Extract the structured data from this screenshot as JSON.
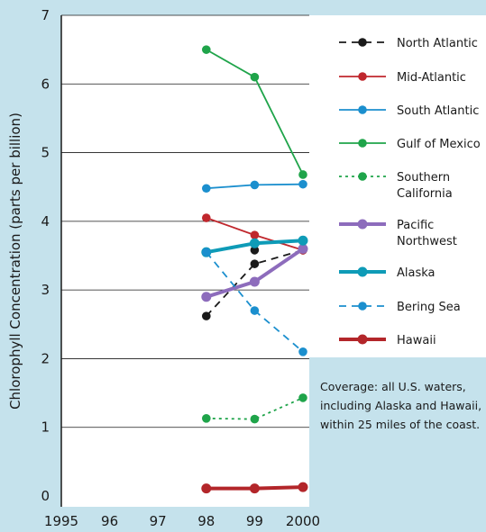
{
  "chart_data": {
    "type": "line",
    "title": "",
    "xlabel": "",
    "ylabel": "Chlorophyll Concentration (parts per billion)",
    "x_ticks": [
      "1995",
      "96",
      "97",
      "98",
      "99",
      "2000"
    ],
    "x_tick_values": [
      1995,
      1996,
      1997,
      1998,
      1999,
      2000
    ],
    "y_ticks": [
      "0",
      "1",
      "2",
      "3",
      "4",
      "5",
      "6",
      "7"
    ],
    "y_tick_values": [
      0,
      1,
      2,
      3,
      4,
      5,
      6,
      7
    ],
    "xlim": [
      1995,
      2000
    ],
    "ylim": [
      0,
      7
    ],
    "grid": "horizontal",
    "legend_position": "right",
    "series": [
      {
        "name": "North Atlantic",
        "color": "#1a1a1a",
        "style": "dashed",
        "weight": "thin",
        "x": [
          1998,
          1999,
          2000
        ],
        "values": [
          2.62,
          3.38,
          3.58
        ]
      },
      {
        "name": "",
        "color": "#1a1a1a",
        "style": "none",
        "weight": "thin",
        "x": [
          1999
        ],
        "values": [
          3.58
        ]
      },
      {
        "name": "Mid-Atlantic",
        "color": "#c0272d",
        "style": "solid",
        "weight": "thin",
        "x": [
          1998,
          1999,
          2000
        ],
        "values": [
          4.05,
          3.8,
          3.58
        ]
      },
      {
        "name": "South Atlantic",
        "color": "#1b8fce",
        "style": "solid",
        "weight": "thin",
        "x": [
          1998,
          1999,
          2000
        ],
        "values": [
          4.48,
          4.53,
          4.54
        ]
      },
      {
        "name": "Gulf of Mexico",
        "color": "#1fa44a",
        "style": "solid",
        "weight": "thin",
        "x": [
          1998,
          1999,
          2000
        ],
        "values": [
          6.5,
          6.1,
          4.68
        ]
      },
      {
        "name": "Southern California",
        "color": "#1fa44a",
        "style": "dotted",
        "weight": "thin",
        "x": [
          1998,
          1999,
          2000
        ],
        "values": [
          1.13,
          1.12,
          1.43
        ]
      },
      {
        "name": "Pacific Northwest",
        "color": "#8d6cbc",
        "style": "solid",
        "weight": "thick",
        "x": [
          1998,
          1999,
          2000
        ],
        "values": [
          2.9,
          3.12,
          3.6
        ]
      },
      {
        "name": "Alaska",
        "color": "#0e9bb7",
        "style": "solid",
        "weight": "thick",
        "x": [
          1998,
          1999,
          2000
        ],
        "values": [
          3.55,
          3.68,
          3.72
        ]
      },
      {
        "name": "Bering Sea",
        "color": "#1b8fce",
        "style": "dashed",
        "weight": "thin",
        "x": [
          1998,
          1999,
          2000
        ],
        "values": [
          3.55,
          2.7,
          2.1
        ]
      },
      {
        "name": "Hawaii",
        "color": "#b3262a",
        "style": "solid",
        "weight": "thick",
        "x": [
          1998,
          1999,
          2000
        ],
        "values": [
          0.11,
          0.11,
          0.13
        ]
      }
    ],
    "legend_entries": [
      {
        "series": "North Atlantic",
        "lines": [
          "North Atlantic"
        ]
      },
      {
        "series": "Mid-Atlantic",
        "lines": [
          "Mid-Atlantic"
        ]
      },
      {
        "series": "South Atlantic",
        "lines": [
          "South Atlantic"
        ]
      },
      {
        "series": "Gulf of Mexico",
        "lines": [
          "Gulf of Mexico"
        ]
      },
      {
        "series": "Southern California",
        "lines": [
          "Southern",
          "California"
        ]
      },
      {
        "series": "Pacific Northwest",
        "lines": [
          "Pacific",
          "Northwest"
        ]
      },
      {
        "series": "Alaska",
        "lines": [
          "Alaska"
        ]
      },
      {
        "series": "Bering Sea",
        "lines": [
          "Bering Sea"
        ]
      },
      {
        "series": "Hawaii",
        "lines": [
          "Hawaii"
        ]
      }
    ],
    "annotation": {
      "lines": [
        "Coverage: all U.S. waters,",
        "including Alaska and Hawaii,",
        "within 25 miles of the coast."
      ]
    }
  }
}
